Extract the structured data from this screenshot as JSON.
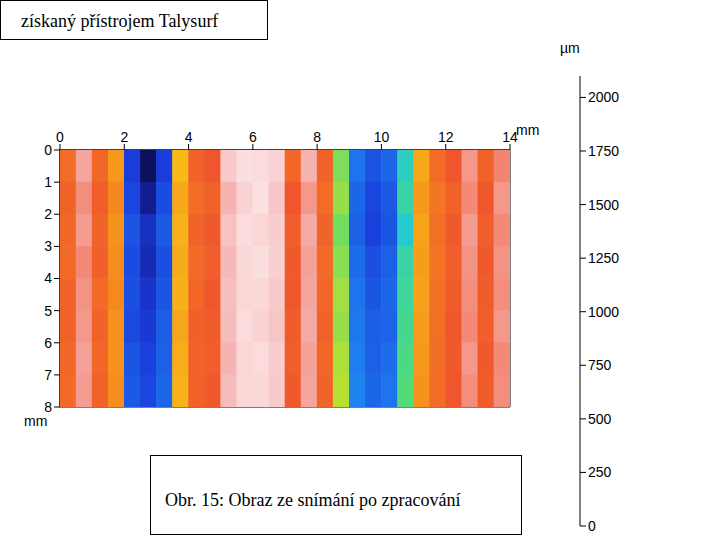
{
  "chart_data": {
    "type": "heatmap",
    "caption_top": "získaný přístrojem Talysurf",
    "caption_bottom": "Obr. 15: Obraz ze snímání po zpracování",
    "x_label": "mm",
    "y_label": "mm",
    "xlim": [
      0,
      14
    ],
    "xticks": [
      0,
      2,
      4,
      6,
      8,
      10,
      12,
      14
    ],
    "ylim": [
      0,
      8
    ],
    "yticks": [
      0,
      1,
      2,
      3,
      4,
      5,
      6,
      7,
      8
    ],
    "x_edges": [
      0,
      0.5,
      1,
      1.5,
      2,
      2.5,
      3,
      3.5,
      4,
      4.5,
      5,
      5.5,
      6,
      6.5,
      7,
      7.5,
      8,
      8.5,
      9,
      9.5,
      10,
      10.5,
      11,
      11.5,
      12,
      12.5,
      13,
      13.5,
      14
    ],
    "y_edges": [
      0,
      1,
      2,
      3,
      4,
      5,
      6,
      7,
      8
    ],
    "cells": [
      [
        1580,
        1850,
        1600,
        1380,
        250,
        60,
        250,
        1250,
        1620,
        1680,
        1950,
        2020,
        2010,
        1980,
        1600,
        1880,
        1620,
        880,
        420,
        320,
        380,
        680,
        1320,
        1580,
        1680,
        1820,
        1620,
        1780
      ],
      [
        1620,
        1800,
        1640,
        1450,
        280,
        120,
        300,
        1320,
        1580,
        1620,
        1880,
        1980,
        2030,
        1940,
        1680,
        1820,
        1580,
        920,
        380,
        280,
        340,
        720,
        1380,
        1530,
        1620,
        1790,
        1670,
        1820
      ],
      [
        1600,
        1830,
        1610,
        1400,
        320,
        200,
        340,
        1280,
        1610,
        1660,
        1920,
        2010,
        1990,
        1960,
        1640,
        1860,
        1610,
        860,
        360,
        260,
        330,
        650,
        1340,
        1560,
        1660,
        1830,
        1640,
        1790
      ],
      [
        1590,
        1790,
        1630,
        1430,
        300,
        180,
        310,
        1310,
        1590,
        1640,
        1890,
        2000,
        2020,
        1970,
        1660,
        1840,
        1590,
        900,
        400,
        310,
        360,
        720,
        1360,
        1540,
        1640,
        1810,
        1660,
        1810
      ],
      [
        1610,
        1810,
        1590,
        1440,
        310,
        220,
        330,
        1290,
        1600,
        1670,
        1910,
        1990,
        2000,
        1950,
        1670,
        1850,
        1600,
        940,
        420,
        330,
        380,
        740,
        1350,
        1550,
        1650,
        1800,
        1650,
        1800
      ],
      [
        1620,
        1820,
        1620,
        1410,
        290,
        240,
        350,
        1330,
        1630,
        1650,
        1900,
        2010,
        1980,
        1940,
        1650,
        1860,
        1620,
        920,
        430,
        350,
        370,
        760,
        1370,
        1560,
        1670,
        1790,
        1640,
        1820
      ],
      [
        1600,
        1840,
        1600,
        1400,
        330,
        260,
        360,
        1300,
        1610,
        1640,
        1880,
        1990,
        2010,
        1960,
        1640,
        1840,
        1600,
        960,
        450,
        360,
        400,
        780,
        1380,
        1570,
        1660,
        1820,
        1660,
        1790
      ],
      [
        1590,
        1830,
        1620,
        1420,
        340,
        280,
        380,
        1280,
        1620,
        1660,
        1900,
        2000,
        2000,
        1950,
        1660,
        1850,
        1610,
        980,
        470,
        380,
        420,
        800,
        1400,
        1580,
        1680,
        1800,
        1650,
        1800
      ]
    ],
    "colorbar": {
      "label": "µm",
      "range": [
        0,
        2100
      ],
      "ticks": [
        0,
        250,
        500,
        750,
        1000,
        1250,
        1500,
        1750,
        2000
      ]
    }
  }
}
